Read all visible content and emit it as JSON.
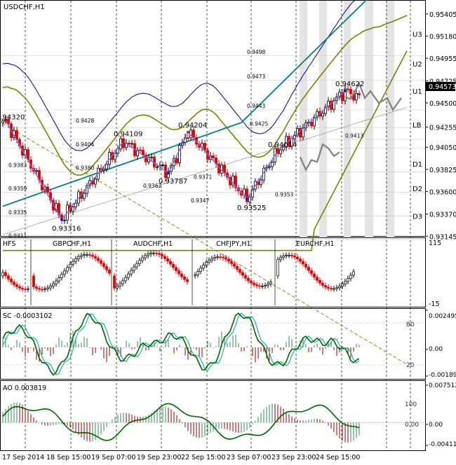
{
  "main": {
    "title": "USDCHF,H1",
    "y_min": 0.9314,
    "y_max": 0.9554,
    "price_ticks": [
      "0.95405",
      "0.95180",
      "0.94955",
      "0.94725",
      "0.94500",
      "0.94255",
      "0.94050",
      "0.93825",
      "0.93600",
      "0.93370",
      "0.93145"
    ],
    "last_price": "0.94573",
    "right_labels": [
      {
        "text": "U3",
        "price": 0.952
      },
      {
        "text": "U2",
        "price": 0.949
      },
      {
        "text": "U1",
        "price": 0.9462
      },
      {
        "text": "LB",
        "price": 0.9428
      },
      {
        "text": "D1",
        "price": 0.9388
      },
      {
        "text": "D2",
        "price": 0.9363
      },
      {
        "text": "D3",
        "price": 0.9335
      }
    ],
    "zigzag_labels": [
      {
        "text": "0.94320",
        "i": 1,
        "price": 0.9436
      },
      {
        "text": "0.93316",
        "i": 21,
        "price": 0.9323
      },
      {
        "text": "0.94109",
        "i": 43,
        "price": 0.9419
      },
      {
        "text": "0.93787",
        "i": 59,
        "price": 0.9371
      },
      {
        "text": "0.94204",
        "i": 66,
        "price": 0.9428
      },
      {
        "text": "0.93525",
        "i": 87,
        "price": 0.9344
      },
      {
        "text": "0.94014",
        "i": 98,
        "price": 0.9408
      },
      {
        "text": "0.94622",
        "i": 122,
        "price": 0.947
      }
    ],
    "level_labels": [
      {
        "text": "0.9428",
        "i": 26,
        "price": 0.94285
      },
      {
        "text": "0.9404",
        "i": 26,
        "price": 0.94045
      },
      {
        "text": "0.9380",
        "i": 26,
        "price": 0.93805
      },
      {
        "text": "0.9383",
        "i": 2,
        "price": 0.93835
      },
      {
        "text": "0.9359",
        "i": 2,
        "price": 0.93595
      },
      {
        "text": "0.9335",
        "i": 2,
        "price": 0.93355
      },
      {
        "text": "0.9311",
        "i": 2,
        "price": 0.93115
      },
      {
        "text": "0.9362",
        "i": 50,
        "price": 0.93625
      },
      {
        "text": "0.9371",
        "i": 68,
        "price": 0.93715
      },
      {
        "text": "0.9347",
        "i": 67,
        "price": 0.93475
      },
      {
        "text": "0.9498",
        "i": 87,
        "price": 0.94985
      },
      {
        "text": "0.9473",
        "i": 87,
        "price": 0.94735
      },
      {
        "text": "0.9443",
        "i": 87,
        "price": 0.94435
      },
      {
        "text": "0.9425",
        "i": 88,
        "price": 0.94255
      },
      {
        "text": "0.9353",
        "i": 97,
        "price": 0.93535
      },
      {
        "text": "0.9413",
        "i": 122,
        "price": 0.94135
      }
    ]
  },
  "cross": {
    "tags": [
      "HFS",
      "GBPCHF,H1",
      "AUDCHF,H1",
      "CHFJPY,H1",
      "EURCHF,H1"
    ],
    "ticks": [
      "115",
      "-15"
    ]
  },
  "stoch": {
    "title": "SC -0.0003102",
    "left_ticks": [
      "80",
      "20"
    ],
    "right_ticks": [
      "0.002495",
      "0.00",
      "-0.001895"
    ]
  },
  "ao": {
    "title": "AO 0.003819",
    "left_ticks": [
      "100",
      "0.00"
    ],
    "right_ticks": [
      "0.007512",
      "0.00",
      "-0.004114"
    ]
  },
  "time_labels": [
    "17 Sep 2014",
    "18 Sep 15:00",
    "19 Sep 07:00",
    "19 Sep 23:00",
    "22 Sep 15:00",
    "23 Sep 07:00",
    "23 Sep 23:00",
    "24 Sep 15:00"
  ],
  "colors": {
    "bull": "#000000",
    "bear": "#e00000",
    "upper_band": "#00008b",
    "mid_band": "#808000",
    "ma": "#008080",
    "zigzag": "#7b68ee",
    "forecast": "#808080",
    "stoch_main": "#006400",
    "stoch_signal": "#20b2aa",
    "ao_line": "#006400",
    "ao_pos": "#2e8b57",
    "ao_neg": "#8b0000"
  },
  "chart_data": [
    {
      "type": "candlestick",
      "title": "USDCHF,H1",
      "ylim": [
        0.9314,
        0.9554
      ],
      "zigzag": [
        [
          1,
          0.9432
        ],
        [
          21,
          0.93316
        ],
        [
          43,
          0.94109
        ],
        [
          59,
          0.93787
        ],
        [
          66,
          0.94204
        ],
        [
          87,
          0.93525
        ],
        [
          98,
          0.94014
        ],
        [
          122,
          0.94622
        ]
      ],
      "x_labels": [
        "17 Sep 2014",
        "18 Sep 15:00",
        "19 Sep 07:00",
        "19 Sep 23:00",
        "22 Sep 15:00",
        "23 Sep 07:00",
        "23 Sep 23:00",
        "24 Sep 15:00"
      ]
    },
    {
      "type": "line",
      "title": "SC -0.0003102",
      "ylim": [
        -0.001895,
        0.002495
      ]
    },
    {
      "type": "bar",
      "title": "AO 0.003819",
      "ylim": [
        -0.004114,
        0.007512
      ]
    }
  ]
}
